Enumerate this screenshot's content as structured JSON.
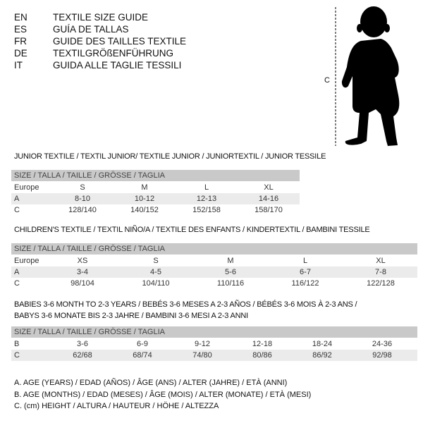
{
  "languages": [
    {
      "code": "EN",
      "text": "TEXTILE SIZE GUIDE"
    },
    {
      "code": "ES",
      "text": "GUÍA DE TALLAS"
    },
    {
      "code": "FR",
      "text": "GUIDE DES TAILLES TEXTILE"
    },
    {
      "code": "DE",
      "text": "TEXTILGRÖßENFÜHRUNG"
    },
    {
      "code": "IT",
      "text": "GUIDA ALLE TAGLIE TESSILI"
    }
  ],
  "figure": {
    "measure_label": "C"
  },
  "junior": {
    "title": "JUNIOR TEXTILE / TEXTIL JUNIOR/ TEXTILE JUNIOR / JUNIORTEXTIL / JUNIOR TESSILE",
    "header": "SIZE / TALLA / TAILLE / GRÖSSE / TAGLIA",
    "rows": [
      {
        "label": "Europe",
        "values": [
          "S",
          "M",
          "L",
          "XL"
        ]
      },
      {
        "label": "A",
        "values": [
          "8-10",
          "10-12",
          "12-13",
          "14-16"
        ]
      },
      {
        "label": "C",
        "values": [
          "128/140",
          "140/152",
          "152/158",
          "158/170"
        ]
      }
    ]
  },
  "children": {
    "title": "CHILDREN'S TEXTILE / TEXTIL NIÑO/A / TEXTILE DES ENFANTS / KINDERTEXTIL / BAMBINI TESSILE",
    "header": "SIZE / TALLA / TAILLE / GRÖSSE / TAGLIA",
    "rows": [
      {
        "label": "Europe",
        "values": [
          "XS",
          "S",
          "M",
          "L",
          "XL"
        ]
      },
      {
        "label": "A",
        "values": [
          "3-4",
          "4-5",
          "5-6",
          "6-7",
          "7-8"
        ]
      },
      {
        "label": "C",
        "values": [
          "98/104",
          "104/110",
          "110/116",
          "116/122",
          "122/128"
        ]
      }
    ]
  },
  "babies": {
    "title_line1": "BABIES 3-6 MONTH TO 2-3 YEARS / BEBÉS 3-6 MESES A 2-3 AÑOS / BÉBÉS 3-6 MOIS À 2-3 ANS /",
    "title_line2": "BABYS 3-6 MONATE BIS 2-3 JAHRE / BAMBINI 3-6 MESI A 2-3 ANNI",
    "header": "SIZE / TALLA / TAILLE / GRÖSSE / TAGLIA",
    "rows": [
      {
        "label": "B",
        "values": [
          "3-6",
          "6-9",
          "9-12",
          "12-18",
          "18-24",
          "24-36"
        ]
      },
      {
        "label": "C",
        "values": [
          "62/68",
          "68/74",
          "74/80",
          "80/86",
          "86/92",
          "92/98"
        ]
      }
    ]
  },
  "legend": [
    "A. AGE (YEARS) / EDAD (AÑOS) / ÂGE (ANS) / ALTER (JAHRE) / ETÀ (ANNI)",
    "B. AGE (MONTHS) / EDAD (MESES) / ÂGE (MOIS) / ALTER (MONATE) / ETÀ (MESI)",
    "C. (cm) HEIGHT / ALTURA / HAUTEUR / HÖHE / ALTEZZA"
  ]
}
